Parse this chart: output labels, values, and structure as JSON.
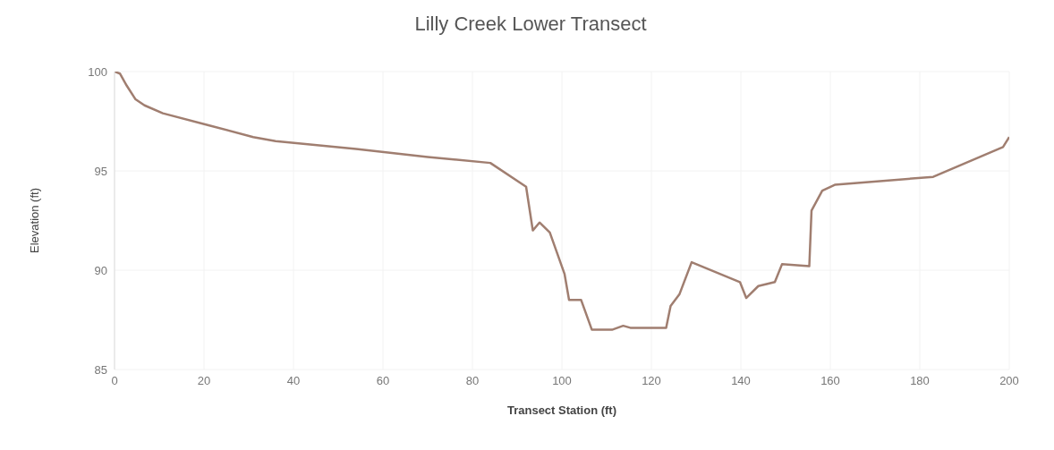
{
  "chart_data": {
    "type": "line",
    "title": "Lilly Creek Lower Transect",
    "xlabel": "Transect Station (ft)",
    "ylabel": "Elevation (ft)",
    "x": [
      0,
      1.2,
      2.7,
      4.7,
      6.7,
      10.8,
      21,
      31,
      36,
      54,
      70,
      84,
      92,
      93.5,
      95,
      97.3,
      100.6,
      101.6,
      104.3,
      106.7,
      111.2,
      113.7,
      115.3,
      123.3,
      124.3,
      126.3,
      129,
      139.8,
      141.2,
      143.9,
      147.6,
      149.2,
      155.3,
      155.8,
      158.2,
      161,
      183,
      198.6,
      200
    ],
    "series": [
      {
        "color": "#a07e70",
        "values": [
          100,
          99.9,
          99.3,
          98.6,
          98.3,
          97.9,
          97.3,
          96.7,
          96.5,
          96.1,
          95.7,
          95.4,
          94.2,
          92.0,
          92.4,
          91.9,
          89.8,
          88.5,
          88.5,
          87.0,
          87.0,
          87.2,
          87.1,
          87.1,
          88.2,
          88.8,
          90.4,
          89.4,
          88.6,
          89.2,
          89.4,
          90.3,
          90.2,
          93.0,
          94.0,
          94.3,
          94.7,
          96.2,
          96.7
        ]
      }
    ],
    "xlim": [
      0,
      200
    ],
    "xticks": [
      0,
      20,
      40,
      60,
      80,
      100,
      120,
      140,
      160,
      180,
      200
    ],
    "ylim": [
      85,
      100
    ],
    "yticks": [
      85,
      90,
      95,
      100
    ],
    "grid": true,
    "marker": "none",
    "line_style": "solid"
  }
}
